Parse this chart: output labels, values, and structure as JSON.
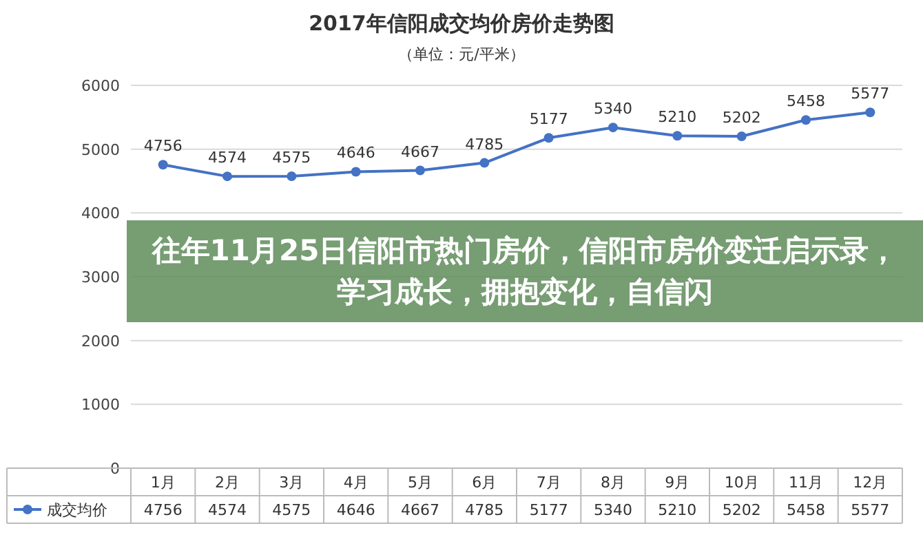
{
  "chart_data": {
    "type": "line",
    "title": "2017年信阳成交均价房价走势图",
    "subtitle": "（单位：元/平米）",
    "categories": [
      "1月",
      "2月",
      "3月",
      "4月",
      "5月",
      "6月",
      "7月",
      "8月",
      "9月",
      "10月",
      "11月",
      "12月"
    ],
    "series": [
      {
        "name": "成交均价",
        "color": "#4472c4",
        "values": [
          4756,
          4574,
          4575,
          4646,
          4667,
          4785,
          5177,
          5340,
          5210,
          5202,
          5458,
          5577
        ]
      }
    ],
    "ylim": [
      0,
      6000
    ],
    "yticks": [
      0,
      1000,
      2000,
      3000,
      4000,
      5000,
      6000
    ],
    "grid": "y",
    "legend": "bottom left",
    "marker": "circle",
    "data_labels": true,
    "annotations": [
      "往年11月25日信阳市热门房价，信阳市房价变迁启示录，学习成长，拥抱变化，自信闪",
      "4756",
      "4574",
      "4575",
      "4646",
      "4667",
      "4785",
      "5177",
      "5340",
      "5210",
      "5202",
      "5458",
      "5577"
    ]
  }
}
